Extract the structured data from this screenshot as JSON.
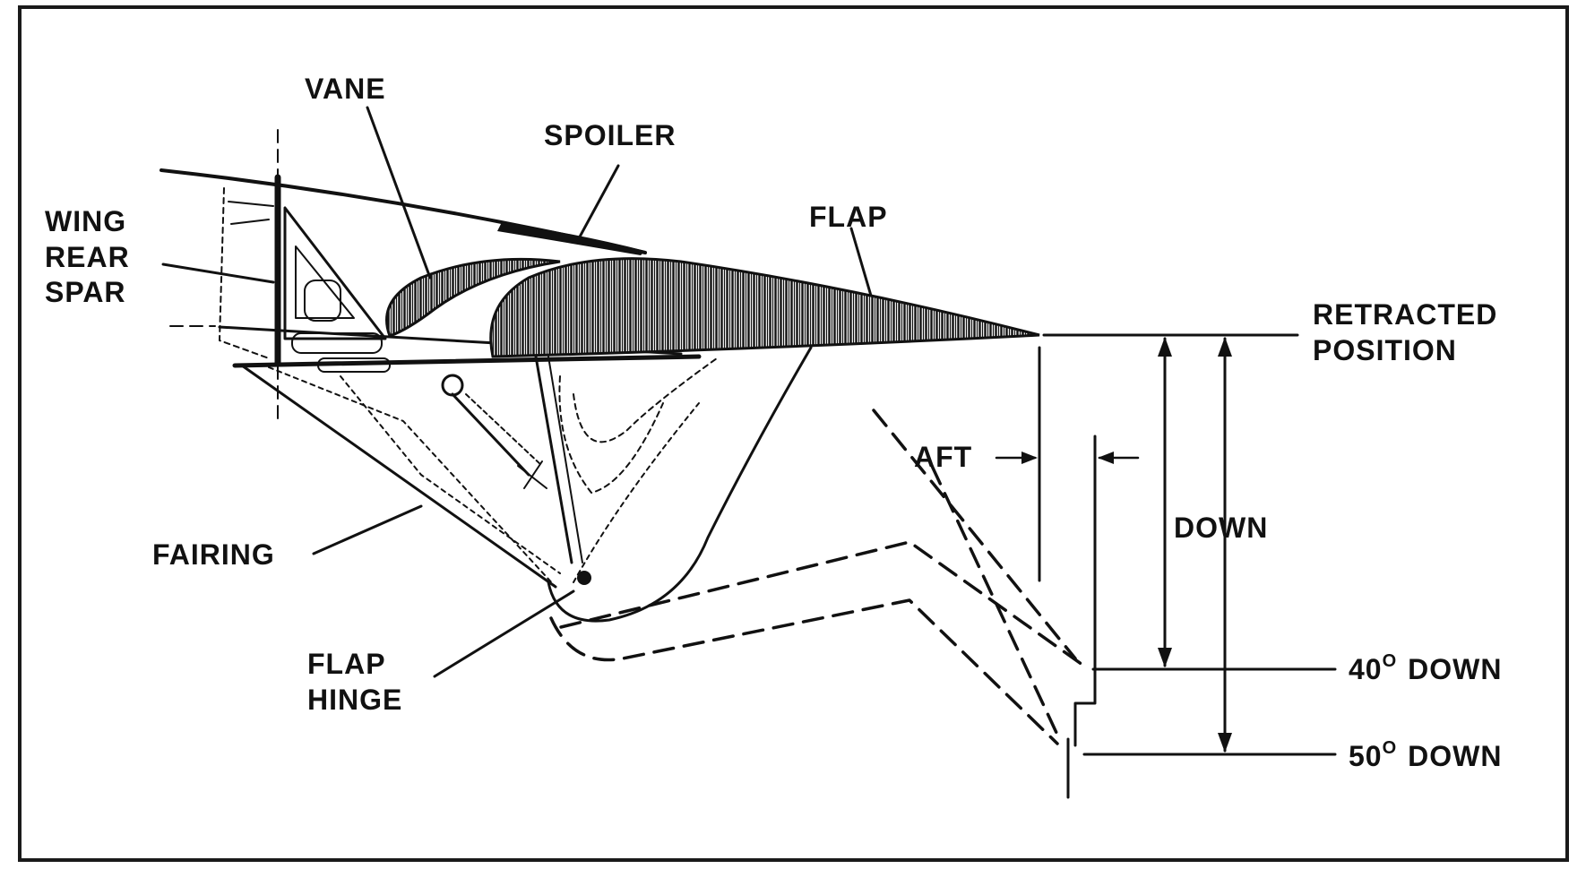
{
  "colors": {
    "ink": "#111111",
    "paper": "#ffffff",
    "frame": "#1a1a1a"
  },
  "labels": {
    "vane": "VANE",
    "spoiler": "SPOILER",
    "flap": "FLAP",
    "wing_rear_spar": [
      "WING",
      "REAR",
      "SPAR"
    ],
    "fairing": "FAIRING",
    "flap_hinge": [
      "FLAP",
      "HINGE"
    ],
    "retracted_position": [
      "RETRACTED",
      "POSITION"
    ],
    "aft": "AFT",
    "down": "DOWN",
    "down_40": {
      "deg": "40",
      "sup": "O",
      "word": "DOWN"
    },
    "down_50": {
      "deg": "50",
      "sup": "O",
      "word": "DOWN"
    }
  }
}
